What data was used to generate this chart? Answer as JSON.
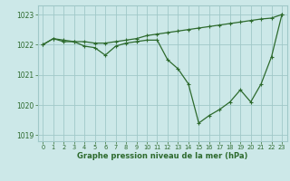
{
  "hours": [
    0,
    1,
    2,
    3,
    4,
    5,
    6,
    7,
    8,
    9,
    10,
    11,
    12,
    13,
    14,
    15,
    16,
    17,
    18,
    19,
    20,
    21,
    22,
    23
  ],
  "pressure_smooth": [
    1022.0,
    1022.2,
    1022.15,
    1022.1,
    1022.1,
    1022.05,
    1022.05,
    1022.1,
    1022.15,
    1022.2,
    1022.3,
    1022.35,
    1022.4,
    1022.45,
    1022.5,
    1022.55,
    1022.6,
    1022.65,
    1022.7,
    1022.75,
    1022.8,
    1022.85,
    1022.88,
    1023.0
  ],
  "pressure_actual": [
    1022.0,
    1022.2,
    1022.1,
    1022.1,
    1021.95,
    1021.9,
    1021.65,
    1021.95,
    1022.05,
    1022.1,
    1022.15,
    1022.15,
    1021.5,
    1021.2,
    1020.7,
    1019.4,
    1019.65,
    1019.85,
    1020.1,
    1020.5,
    1020.1,
    1020.7,
    1021.6,
    1023.0
  ],
  "line_color": "#2d6a2d",
  "bg_color": "#cce8e8",
  "grid_color": "#a0c8c8",
  "xlabel": "Graphe pression niveau de la mer (hPa)",
  "ylim": [
    1018.8,
    1023.3
  ],
  "xlim": [
    -0.5,
    23.5
  ],
  "yticks": [
    1019,
    1020,
    1021,
    1022,
    1023
  ],
  "xticks": [
    0,
    1,
    2,
    3,
    4,
    5,
    6,
    7,
    8,
    9,
    10,
    11,
    12,
    13,
    14,
    15,
    16,
    17,
    18,
    19,
    20,
    21,
    22,
    23
  ]
}
